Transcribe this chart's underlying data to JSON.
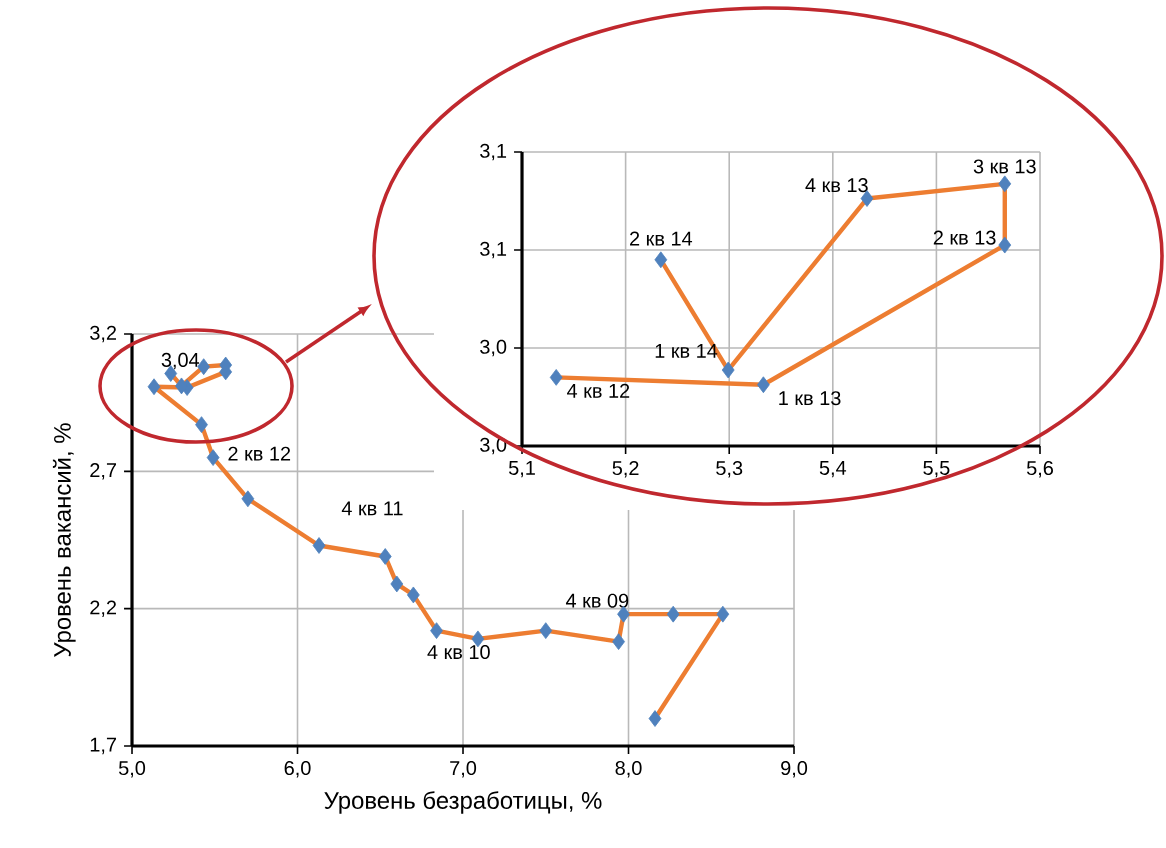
{
  "chart_data": [
    {
      "type": "line",
      "xlabel": "Уровень безработицы, %",
      "ylabel": "Уровень вакансий, %",
      "marker": "diamond",
      "line_style": "solid",
      "grid": true,
      "xlim": [
        5.0,
        9.0
      ],
      "xticks": [
        {
          "value": 5,
          "label": "5,0"
        },
        {
          "value": 6,
          "label": "6,0"
        },
        {
          "value": 7,
          "label": "7,0"
        },
        {
          "value": 8,
          "label": "8,0"
        },
        {
          "value": 9,
          "label": "9,0"
        }
      ],
      "ylim": [
        1.7,
        3.2
      ],
      "yticks": [
        {
          "value": 1.7,
          "label": "1,7"
        },
        {
          "value": 2.2,
          "label": "2,2"
        },
        {
          "value": 2.7,
          "label": "2,7"
        },
        {
          "value": 3.2,
          "label": "3,2"
        }
      ],
      "series": [
        {
          "color": "#ed7d31",
          "colors": [
            "#4f81bd",
            "#4f81bd",
            "#4f81bd",
            "#4f81bd",
            "#4f81bd",
            "#4f81bd",
            "#4f81bd",
            "#4f81bd",
            "#4f81bd",
            "#4f81bd",
            "#4f81bd",
            "#4f81bd",
            "#4f81bd",
            "#4f81bd",
            "#4f81bd",
            "#4f81bd",
            "#4f81bd",
            "#4f81bd",
            "#4f81bd",
            "#4f81bd",
            "#4f81bd",
            "#4f81bd"
          ],
          "x": [
            8.16,
            8.57,
            8.27,
            7.97,
            7.94,
            7.5,
            7.09,
            6.84,
            6.7,
            6.6,
            6.53,
            6.13,
            5.7,
            5.49,
            5.42,
            5.133,
            5.333,
            5.566,
            5.566,
            5.433,
            5.299,
            5.234
          ],
          "values": [
            1.8,
            2.18,
            2.18,
            2.18,
            2.08,
            2.12,
            2.09,
            2.12,
            2.25,
            2.29,
            2.39,
            2.43,
            2.6,
            2.75,
            2.87,
            3.008,
            3.005,
            3.062,
            3.087,
            3.081,
            3.011,
            3.056
          ]
        }
      ],
      "annotations": [
        "3,04",
        {
          "text": "2 кв 12",
          "x": 5.49,
          "y": 2.75
        },
        {
          "text": "4 кв 11",
          "x": 6.13,
          "y": 2.43
        },
        {
          "text": "4 кв 10",
          "x": 6.84,
          "y": 2.12
        },
        {
          "text": "4 кв 09",
          "x": 7.97,
          "y": 2.18
        }
      ]
    },
    {
      "type": "line",
      "marker": "diamond",
      "line_style": "solid",
      "grid": true,
      "xlim": [
        5.1,
        5.6
      ],
      "xticks": [
        {
          "value": 5.1,
          "label": "5,1"
        },
        {
          "value": 5.2,
          "label": "5,2"
        },
        {
          "value": 5.3,
          "label": "5,3"
        },
        {
          "value": 5.4,
          "label": "5,4"
        },
        {
          "value": 5.5,
          "label": "5,5"
        },
        {
          "value": 5.6,
          "label": "5,6"
        }
      ],
      "ylim": [
        2.98,
        3.1
      ],
      "yticks": [
        {
          "value": 2.98,
          "label": "3,0"
        },
        {
          "value": 3.02,
          "label": "3,0"
        },
        {
          "value": 3.06,
          "label": "3,1"
        },
        {
          "value": 3.1,
          "label": "3,1"
        }
      ],
      "series": [
        {
          "color": "#ed7d31",
          "colors": [
            "#4f81bd",
            "#4f81bd",
            "#4f81bd",
            "#4f81bd",
            "#4f81bd",
            "#4f81bd",
            "#4f81bd"
          ],
          "x": [
            5.133,
            5.333,
            5.566,
            5.566,
            5.433,
            5.299,
            5.234
          ],
          "values": [
            3.008,
            3.005,
            3.062,
            3.087,
            3.081,
            3.011,
            3.056
          ]
        }
      ],
      "annotations": [
        {
          "text": "4 кв 12",
          "x": 5.133,
          "y": 3.008
        },
        {
          "text": "1 кв 13",
          "x": 5.333,
          "y": 3.005
        },
        {
          "text": "2 кв 13",
          "x": 5.566,
          "y": 3.062
        },
        {
          "text": "3 кв 13",
          "x": 5.566,
          "y": 3.087
        },
        {
          "text": "4 кв 13",
          "x": 5.433,
          "y": 3.081
        },
        {
          "text": "1 кв 14",
          "x": 5.299,
          "y": 3.011
        },
        {
          "text": "2 кв 14",
          "x": 5.234,
          "y": 3.056
        }
      ]
    }
  ]
}
